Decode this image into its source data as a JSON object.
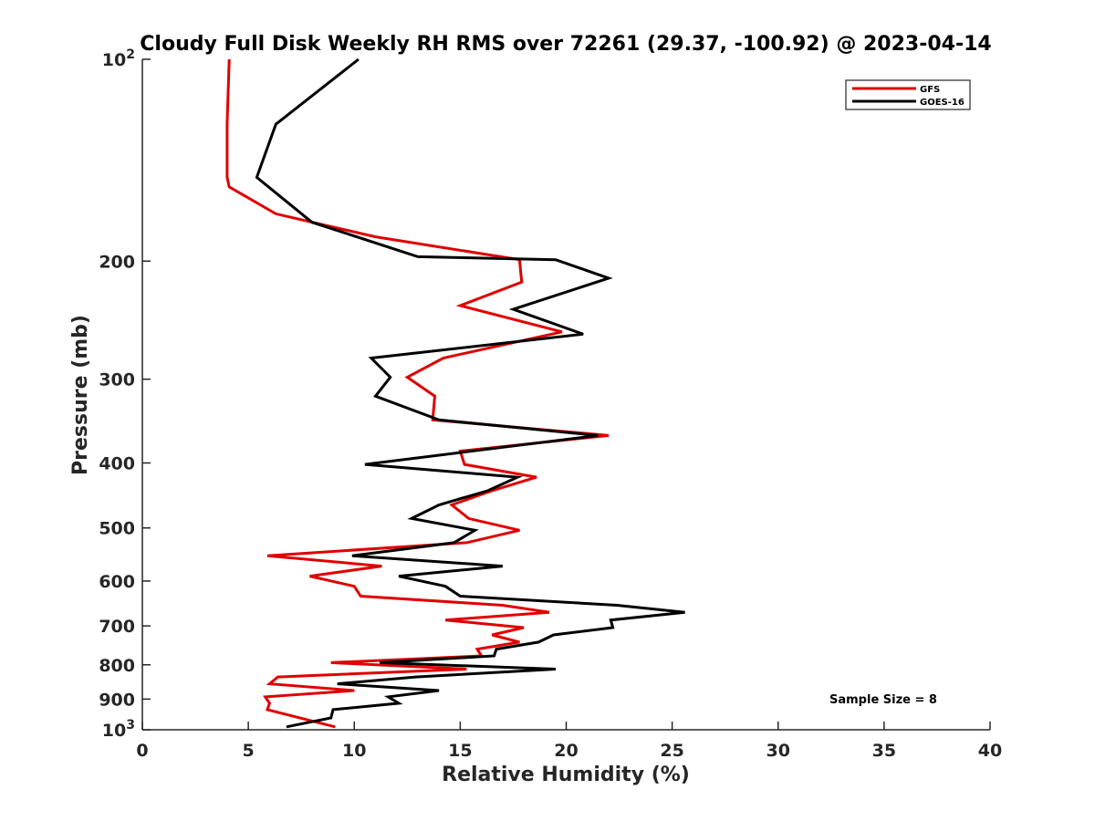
{
  "chart_data": {
    "type": "line",
    "title": "Cloudy Full Disk Weekly RH RMS over 72261 (29.37, -100.92) @ 2023-04-14",
    "xlabel": "Relative Humidity (%)",
    "ylabel": "Pressure (mb)",
    "xlim": [
      0,
      40
    ],
    "ylim": [
      100,
      1000
    ],
    "y_scale": "log",
    "y_reversed": true,
    "x_ticks": [
      {
        "value": 0,
        "label": "0"
      },
      {
        "value": 5,
        "label": "5"
      },
      {
        "value": 10,
        "label": "10"
      },
      {
        "value": 15,
        "label": "15"
      },
      {
        "value": 20,
        "label": "20"
      },
      {
        "value": 25,
        "label": "25"
      },
      {
        "value": 30,
        "label": "30"
      },
      {
        "value": 35,
        "label": "35"
      },
      {
        "value": 40,
        "label": "40"
      }
    ],
    "y_ticks": [
      {
        "value": 100,
        "base": "10",
        "exp": "2"
      },
      {
        "value": 200,
        "label": "200"
      },
      {
        "value": 300,
        "label": "300"
      },
      {
        "value": 400,
        "label": "400"
      },
      {
        "value": 500,
        "label": "500"
      },
      {
        "value": 600,
        "label": "600"
      },
      {
        "value": 700,
        "label": "700"
      },
      {
        "value": 800,
        "label": "800"
      },
      {
        "value": 900,
        "label": "900"
      },
      {
        "value": 1000,
        "base": "10",
        "exp": "3"
      }
    ],
    "grid": false,
    "legend_position": "top-right",
    "series": [
      {
        "name": "GFS",
        "color": "#e00000",
        "points": [
          [
            4.1,
            100
          ],
          [
            4.0,
            125
          ],
          [
            4.0,
            150
          ],
          [
            4.1,
            155
          ],
          [
            6.3,
            170
          ],
          [
            11.0,
            184
          ],
          [
            17.8,
            199
          ],
          [
            17.9,
            215
          ],
          [
            15.0,
            233
          ],
          [
            19.8,
            255
          ],
          [
            14.2,
            279
          ],
          [
            12.5,
            298
          ],
          [
            13.8,
            318
          ],
          [
            13.7,
            345
          ],
          [
            22.0,
            364
          ],
          [
            15.0,
            384
          ],
          [
            15.2,
            402
          ],
          [
            18.6,
            420
          ],
          [
            16.5,
            440
          ],
          [
            14.6,
            462
          ],
          [
            15.4,
            484
          ],
          [
            17.8,
            504
          ],
          [
            15.3,
            526
          ],
          [
            5.9,
            550
          ],
          [
            11.3,
            570
          ],
          [
            7.9,
            590
          ],
          [
            10.0,
            611
          ],
          [
            10.3,
            632
          ],
          [
            17.0,
            652
          ],
          [
            19.2,
            668
          ],
          [
            14.3,
            686
          ],
          [
            18.0,
            704
          ],
          [
            16.5,
            722
          ],
          [
            17.8,
            740
          ],
          [
            15.8,
            758
          ],
          [
            16.0,
            776
          ],
          [
            8.9,
            794
          ],
          [
            15.3,
            812
          ],
          [
            6.4,
            834
          ],
          [
            6.0,
            854
          ],
          [
            10.0,
            874
          ],
          [
            5.8,
            893
          ],
          [
            6.0,
            913
          ],
          [
            5.9,
            933
          ],
          [
            9.1,
            990
          ]
        ]
      },
      {
        "name": "GOES-16",
        "color": "#000000",
        "points": [
          [
            10.2,
            100
          ],
          [
            6.3,
            125
          ],
          [
            5.4,
            150
          ],
          [
            8.0,
            175
          ],
          [
            13.0,
            197
          ],
          [
            19.5,
            199
          ],
          [
            22.0,
            212
          ],
          [
            17.5,
            236
          ],
          [
            20.8,
            257
          ],
          [
            10.8,
            279
          ],
          [
            11.7,
            298
          ],
          [
            11.0,
            318
          ],
          [
            14.0,
            345
          ],
          [
            21.5,
            364
          ],
          [
            15.0,
            386
          ],
          [
            10.5,
            402
          ],
          [
            17.7,
            420
          ],
          [
            16.3,
            440
          ],
          [
            14.0,
            462
          ],
          [
            12.7,
            484
          ],
          [
            15.7,
            504
          ],
          [
            14.7,
            526
          ],
          [
            9.9,
            550
          ],
          [
            17.0,
            570
          ],
          [
            12.1,
            590
          ],
          [
            14.3,
            611
          ],
          [
            15.0,
            632
          ],
          [
            22.4,
            652
          ],
          [
            25.6,
            668
          ],
          [
            22.1,
            686
          ],
          [
            22.2,
            704
          ],
          [
            19.4,
            722
          ],
          [
            18.7,
            740
          ],
          [
            16.7,
            758
          ],
          [
            16.6,
            776
          ],
          [
            11.2,
            794
          ],
          [
            19.5,
            812
          ],
          [
            12.9,
            834
          ],
          [
            9.2,
            854
          ],
          [
            14.0,
            874
          ],
          [
            11.6,
            893
          ],
          [
            12.1,
            913
          ],
          [
            9.0,
            933
          ],
          [
            8.9,
            960
          ],
          [
            6.8,
            990
          ]
        ]
      }
    ],
    "annotations": [
      {
        "text": "Sample Size = 8",
        "position": "bottom-right"
      }
    ]
  }
}
